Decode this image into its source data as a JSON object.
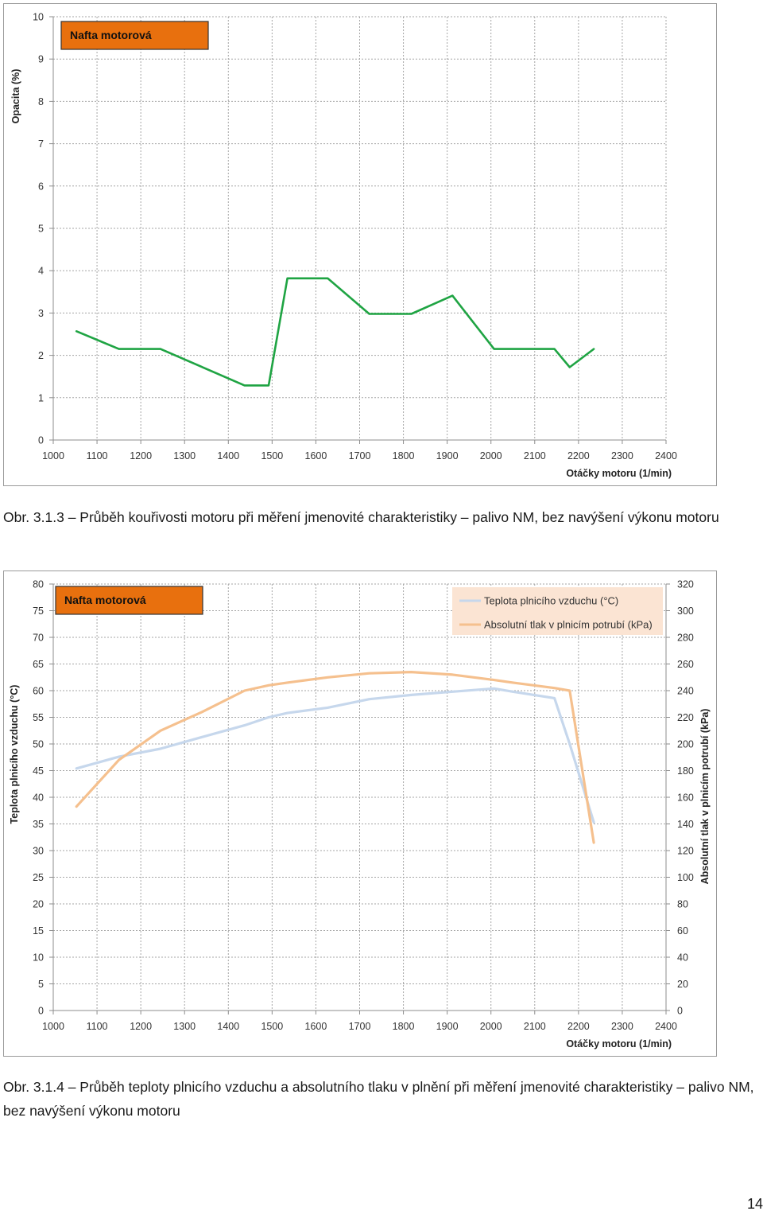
{
  "chart_data": [
    {
      "type": "line",
      "title": "Nafta motorová",
      "xlabel": "Otáčky motoru (1/min)",
      "ylabel": "Opacita (%)",
      "xlim": [
        1000,
        2400
      ],
      "ylim": [
        0,
        10
      ],
      "x_ticks": [
        1000,
        1100,
        1200,
        1300,
        1400,
        1500,
        1600,
        1700,
        1800,
        1900,
        2000,
        2100,
        2200,
        2300,
        2400
      ],
      "y_ticks": [
        0,
        1,
        2,
        3,
        4,
        5,
        6,
        7,
        8,
        9,
        10
      ],
      "grid": true,
      "series": [
        {
          "color": "#1fa443",
          "x": [
            1053,
            1150,
            1245,
            1437,
            1492,
            1535,
            1627,
            1722,
            1818,
            1912,
            2007,
            2145,
            2180,
            2235
          ],
          "y": [
            2.57,
            2.15,
            2.15,
            1.29,
            1.29,
            3.82,
            3.82,
            2.98,
            2.98,
            3.41,
            2.15,
            2.15,
            1.72,
            2.15
          ]
        }
      ]
    },
    {
      "type": "line",
      "title": "Nafta motorová",
      "xlabel": "Otáčky motoru (1/min)",
      "ylabel": "Teplota plnicího vzduchu (°C)",
      "y2label": "Absolutní tlak v plnicím potrubí (kPa)",
      "xlim": [
        1000,
        2400
      ],
      "ylim": [
        0,
        80
      ],
      "y2lim": [
        0,
        320
      ],
      "x_ticks": [
        1000,
        1100,
        1200,
        1300,
        1400,
        1500,
        1600,
        1700,
        1800,
        1900,
        2000,
        2100,
        2200,
        2300,
        2400
      ],
      "y_ticks": [
        0,
        5,
        10,
        15,
        20,
        25,
        30,
        35,
        40,
        45,
        50,
        55,
        60,
        65,
        70,
        75,
        80
      ],
      "y2_ticks": [
        0,
        20,
        40,
        60,
        80,
        100,
        120,
        140,
        160,
        180,
        200,
        220,
        240,
        260,
        280,
        300,
        320
      ],
      "grid": true,
      "legend_position": "top-right",
      "series": [
        {
          "name": "Teplota plnicího vzduchu (°C)",
          "axis": "left",
          "color": "#c6d7ec",
          "x": [
            1053,
            1150,
            1245,
            1340,
            1437,
            1492,
            1535,
            1627,
            1722,
            1818,
            1912,
            2007,
            2050,
            2145,
            2180,
            2235
          ],
          "y": [
            45.4,
            47.6,
            49.1,
            51.3,
            53.5,
            55.0,
            55.8,
            56.8,
            58.4,
            59.2,
            59.8,
            60.4,
            59.8,
            58.6,
            50.0,
            35.3
          ]
        },
        {
          "name": "Absolutní tlak v plnicím potrubí (kPa)",
          "axis": "right",
          "color": "#f5c08e",
          "x": [
            1053,
            1150,
            1245,
            1340,
            1437,
            1492,
            1535,
            1627,
            1722,
            1818,
            1912,
            2007,
            2050,
            2145,
            2180,
            2235
          ],
          "y": [
            153,
            188,
            210,
            224,
            240,
            244,
            246,
            250,
            253,
            254,
            252,
            248,
            246,
            242,
            240,
            126
          ]
        }
      ]
    }
  ],
  "captions": {
    "fig1": "Obr. 3.1.3 – Průběh kouřivosti motoru při měření jmenovité charakteristiky – palivo NM, bez navýšení výkonu motoru",
    "fig2": "Obr. 3.1.4 – Průběh teploty plnicího vzduchu a absolutního tlaku v plnění při měření jmenovité charakteristiky – palivo NM, bez navýšení výkonu motoru"
  },
  "colors": {
    "title_box_fill": "#e8700e",
    "grid": "#a6a6a6",
    "legend_fill": "#fbe4d3"
  },
  "page_number": "14"
}
